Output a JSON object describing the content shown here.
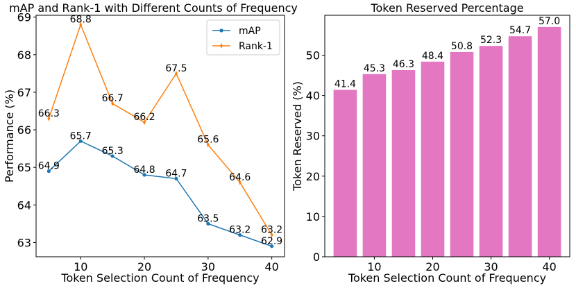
{
  "chart_data": [
    {
      "type": "line",
      "title": "mAP and Rank-1 with Different Counts of Frequency",
      "xlabel": "Token Selection Count of Frequency",
      "ylabel": "Performance (%)",
      "x": [
        5,
        10,
        15,
        20,
        25,
        30,
        35,
        40
      ],
      "xlim": [
        3,
        42
      ],
      "ylim": [
        62.62,
        69.05
      ],
      "xticks": [
        10,
        20,
        30,
        40
      ],
      "yticks": [
        63,
        64,
        65,
        66,
        67,
        68,
        69
      ],
      "legend_position": "top-right",
      "series": [
        {
          "name": "mAP",
          "color": "#1f77b4",
          "marker": "circle",
          "values": [
            64.9,
            65.7,
            65.3,
            64.8,
            64.7,
            63.5,
            63.2,
            62.9
          ],
          "labels": [
            "64.9",
            "65.7",
            "65.3",
            "64.8",
            "64.7",
            "63.5",
            "63.2",
            "62.9"
          ]
        },
        {
          "name": "Rank-1",
          "color": "#ff7f0e",
          "marker": "diamond",
          "values": [
            66.3,
            68.8,
            66.7,
            66.2,
            67.5,
            65.6,
            64.6,
            63.2
          ],
          "labels": [
            "66.3",
            "68.8",
            "66.7",
            "66.2",
            "67.5",
            "65.6",
            "64.6",
            "63.2"
          ]
        }
      ]
    },
    {
      "type": "bar",
      "title": "Token Reserved Percentage",
      "xlabel": "Token Selection Count of Frequency",
      "ylabel": "Token Reserved (%)",
      "x": [
        5,
        10,
        15,
        20,
        25,
        30,
        35,
        40
      ],
      "values": [
        41.4,
        45.3,
        46.3,
        48.4,
        50.8,
        52.3,
        54.7,
        57.0
      ],
      "labels": [
        "41.4",
        "45.3",
        "46.3",
        "48.4",
        "50.8",
        "52.3",
        "54.7",
        "57.0"
      ],
      "bar_color": "#e377c2",
      "xlim": [
        1.5,
        43.5
      ],
      "ylim": [
        0,
        59.9
      ],
      "xticks": [
        10,
        20,
        30,
        40
      ],
      "yticks": [
        0,
        10,
        20,
        30,
        40,
        50
      ]
    }
  ]
}
